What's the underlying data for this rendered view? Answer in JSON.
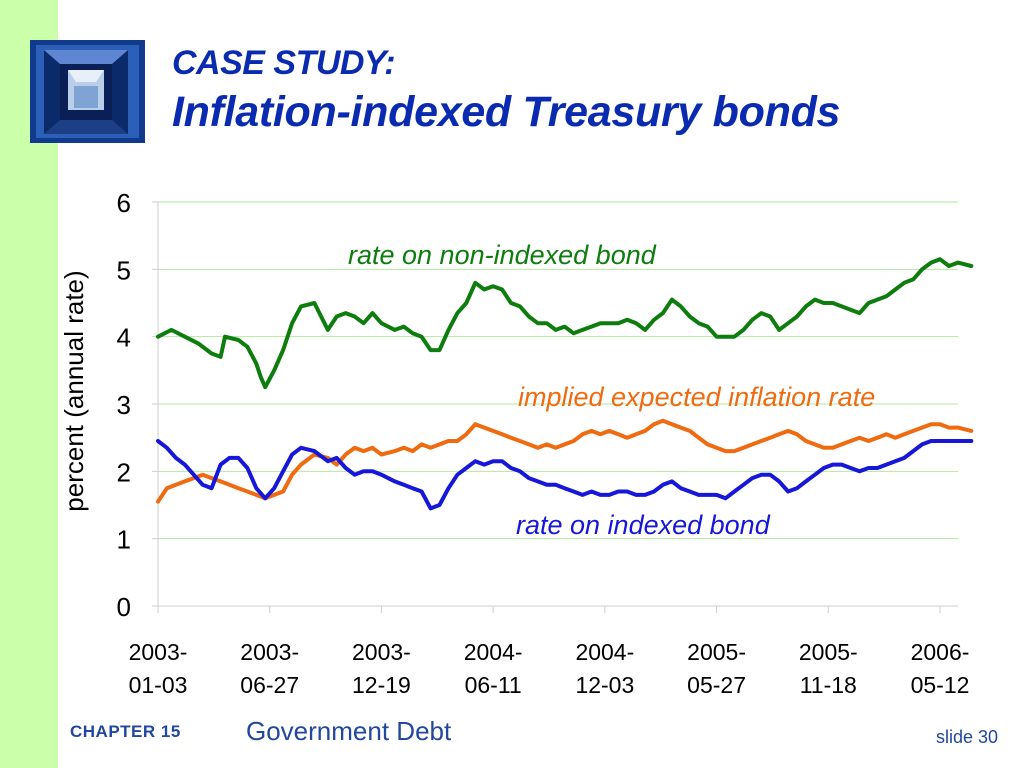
{
  "slide": {
    "title_line1": "CASE STUDY:",
    "title_line2": "Inflation-indexed Treasury bonds",
    "footer_chapter": "CHAPTER 15",
    "footer_subject": "Government Debt",
    "footer_slide": "slide 30"
  },
  "colors": {
    "sidebar": "#ccffaa",
    "title": "#0a2bb0",
    "non_indexed": "#0d7d0d",
    "inflation": "#f06a10",
    "indexed": "#1717d9",
    "grid": "#b6e6a2"
  },
  "chart_data": {
    "type": "line",
    "ylabel": "percent (annual rate)",
    "ylim": [
      0,
      6
    ],
    "yticks": [
      0,
      1,
      2,
      3,
      4,
      5,
      6
    ],
    "grid": true,
    "x_tick_labels": [
      [
        "2003-",
        "01-03"
      ],
      [
        "2003-",
        "06-27"
      ],
      [
        "2003-",
        "12-19"
      ],
      [
        "2004-",
        "06-11"
      ],
      [
        "2004-",
        "12-03"
      ],
      [
        "2005-",
        "05-27"
      ],
      [
        "2005-",
        "11-18"
      ],
      [
        "2006-",
        "05-12"
      ]
    ],
    "x_ticks": [
      "2003-01-03",
      "2003-06-27",
      "2003-12-19",
      "2004-06-11",
      "2004-12-03",
      "2005-05-27",
      "2005-11-18",
      "2006-05-12"
    ],
    "x_range": [
      "2003-01-03",
      "2006-06-30"
    ],
    "series": [
      {
        "name": "rate on non-indexed bond",
        "label_text": "rate on non-indexed bond",
        "color_key": "non_indexed",
        "points": [
          [
            "2003-01-03",
            4.0
          ],
          [
            "2003-01-24",
            4.1
          ],
          [
            "2003-02-14",
            4.0
          ],
          [
            "2003-03-07",
            3.9
          ],
          [
            "2003-03-28",
            3.75
          ],
          [
            "2003-04-11",
            3.7
          ],
          [
            "2003-04-18",
            4.0
          ],
          [
            "2003-05-09",
            3.95
          ],
          [
            "2003-05-23",
            3.85
          ],
          [
            "2003-06-06",
            3.6
          ],
          [
            "2003-06-13",
            3.4
          ],
          [
            "2003-06-20",
            3.25
          ],
          [
            "2003-07-04",
            3.5
          ],
          [
            "2003-07-18",
            3.8
          ],
          [
            "2003-08-01",
            4.2
          ],
          [
            "2003-08-15",
            4.45
          ],
          [
            "2003-09-05",
            4.5
          ],
          [
            "2003-09-26",
            4.1
          ],
          [
            "2003-10-10",
            4.3
          ],
          [
            "2003-10-24",
            4.35
          ],
          [
            "2003-11-07",
            4.3
          ],
          [
            "2003-11-21",
            4.2
          ],
          [
            "2003-12-05",
            4.35
          ],
          [
            "2003-12-19",
            4.2
          ],
          [
            "2004-01-09",
            4.1
          ],
          [
            "2004-01-23",
            4.15
          ],
          [
            "2004-02-06",
            4.05
          ],
          [
            "2004-02-20",
            4.0
          ],
          [
            "2004-03-05",
            3.8
          ],
          [
            "2004-03-19",
            3.8
          ],
          [
            "2004-04-02",
            4.1
          ],
          [
            "2004-04-16",
            4.35
          ],
          [
            "2004-04-30",
            4.5
          ],
          [
            "2004-05-14",
            4.8
          ],
          [
            "2004-05-28",
            4.7
          ],
          [
            "2004-06-11",
            4.75
          ],
          [
            "2004-06-25",
            4.7
          ],
          [
            "2004-07-09",
            4.5
          ],
          [
            "2004-07-23",
            4.45
          ],
          [
            "2004-08-06",
            4.3
          ],
          [
            "2004-08-20",
            4.2
          ],
          [
            "2004-09-03",
            4.2
          ],
          [
            "2004-09-17",
            4.1
          ],
          [
            "2004-10-01",
            4.15
          ],
          [
            "2004-10-15",
            4.05
          ],
          [
            "2004-10-29",
            4.1
          ],
          [
            "2004-11-12",
            4.15
          ],
          [
            "2004-11-26",
            4.2
          ],
          [
            "2004-12-10",
            4.2
          ],
          [
            "2004-12-24",
            4.2
          ],
          [
            "2005-01-07",
            4.25
          ],
          [
            "2005-01-21",
            4.2
          ],
          [
            "2005-02-04",
            4.1
          ],
          [
            "2005-02-18",
            4.25
          ],
          [
            "2005-03-04",
            4.35
          ],
          [
            "2005-03-18",
            4.55
          ],
          [
            "2005-04-01",
            4.45
          ],
          [
            "2005-04-15",
            4.3
          ],
          [
            "2005-04-29",
            4.2
          ],
          [
            "2005-05-13",
            4.15
          ],
          [
            "2005-05-27",
            4.0
          ],
          [
            "2005-06-10",
            4.0
          ],
          [
            "2005-06-24",
            4.0
          ],
          [
            "2005-07-08",
            4.1
          ],
          [
            "2005-07-22",
            4.25
          ],
          [
            "2005-08-05",
            4.35
          ],
          [
            "2005-08-19",
            4.3
          ],
          [
            "2005-09-02",
            4.1
          ],
          [
            "2005-09-16",
            4.2
          ],
          [
            "2005-09-30",
            4.3
          ],
          [
            "2005-10-14",
            4.45
          ],
          [
            "2005-10-28",
            4.55
          ],
          [
            "2005-11-11",
            4.5
          ],
          [
            "2005-11-25",
            4.5
          ],
          [
            "2005-12-09",
            4.45
          ],
          [
            "2005-12-23",
            4.4
          ],
          [
            "2006-01-06",
            4.35
          ],
          [
            "2006-01-20",
            4.5
          ],
          [
            "2006-02-03",
            4.55
          ],
          [
            "2006-02-17",
            4.6
          ],
          [
            "2006-03-03",
            4.7
          ],
          [
            "2006-03-17",
            4.8
          ],
          [
            "2006-03-31",
            4.85
          ],
          [
            "2006-04-14",
            5.0
          ],
          [
            "2006-04-28",
            5.1
          ],
          [
            "2006-05-12",
            5.15
          ],
          [
            "2006-05-26",
            5.05
          ],
          [
            "2006-06-09",
            5.1
          ],
          [
            "2006-06-30",
            5.05
          ]
        ]
      },
      {
        "name": "implied expected inflation rate",
        "label_text": "implied expected inflation rate",
        "color_key": "inflation",
        "points": [
          [
            "2003-01-03",
            1.55
          ],
          [
            "2003-01-17",
            1.75
          ],
          [
            "2003-01-31",
            1.8
          ],
          [
            "2003-02-14",
            1.85
          ],
          [
            "2003-02-28",
            1.9
          ],
          [
            "2003-03-14",
            1.95
          ],
          [
            "2003-03-28",
            1.9
          ],
          [
            "2003-04-11",
            1.85
          ],
          [
            "2003-04-25",
            1.8
          ],
          [
            "2003-05-09",
            1.75
          ],
          [
            "2003-05-23",
            1.7
          ],
          [
            "2003-06-06",
            1.65
          ],
          [
            "2003-06-20",
            1.6
          ],
          [
            "2003-07-04",
            1.65
          ],
          [
            "2003-07-18",
            1.7
          ],
          [
            "2003-08-01",
            1.95
          ],
          [
            "2003-08-15",
            2.1
          ],
          [
            "2003-09-05",
            2.25
          ],
          [
            "2003-09-26",
            2.2
          ],
          [
            "2003-10-10",
            2.1
          ],
          [
            "2003-10-24",
            2.25
          ],
          [
            "2003-11-07",
            2.35
          ],
          [
            "2003-11-21",
            2.3
          ],
          [
            "2003-12-05",
            2.35
          ],
          [
            "2003-12-19",
            2.25
          ],
          [
            "2004-01-09",
            2.3
          ],
          [
            "2004-01-23",
            2.35
          ],
          [
            "2004-02-06",
            2.3
          ],
          [
            "2004-02-20",
            2.4
          ],
          [
            "2004-03-05",
            2.35
          ],
          [
            "2004-03-19",
            2.4
          ],
          [
            "2004-04-02",
            2.45
          ],
          [
            "2004-04-16",
            2.45
          ],
          [
            "2004-04-30",
            2.55
          ],
          [
            "2004-05-14",
            2.7
          ],
          [
            "2004-05-28",
            2.65
          ],
          [
            "2004-06-11",
            2.6
          ],
          [
            "2004-06-25",
            2.55
          ],
          [
            "2004-07-09",
            2.5
          ],
          [
            "2004-07-23",
            2.45
          ],
          [
            "2004-08-06",
            2.4
          ],
          [
            "2004-08-20",
            2.35
          ],
          [
            "2004-09-03",
            2.4
          ],
          [
            "2004-09-17",
            2.35
          ],
          [
            "2004-10-01",
            2.4
          ],
          [
            "2004-10-15",
            2.45
          ],
          [
            "2004-10-29",
            2.55
          ],
          [
            "2004-11-12",
            2.6
          ],
          [
            "2004-11-26",
            2.55
          ],
          [
            "2004-12-10",
            2.6
          ],
          [
            "2004-12-24",
            2.55
          ],
          [
            "2005-01-07",
            2.5
          ],
          [
            "2005-01-21",
            2.55
          ],
          [
            "2005-02-04",
            2.6
          ],
          [
            "2005-02-18",
            2.7
          ],
          [
            "2005-03-04",
            2.75
          ],
          [
            "2005-03-18",
            2.7
          ],
          [
            "2005-04-01",
            2.65
          ],
          [
            "2005-04-15",
            2.6
          ],
          [
            "2005-04-29",
            2.5
          ],
          [
            "2005-05-13",
            2.4
          ],
          [
            "2005-05-27",
            2.35
          ],
          [
            "2005-06-10",
            2.3
          ],
          [
            "2005-06-24",
            2.3
          ],
          [
            "2005-07-08",
            2.35
          ],
          [
            "2005-07-22",
            2.4
          ],
          [
            "2005-08-05",
            2.45
          ],
          [
            "2005-08-19",
            2.5
          ],
          [
            "2005-09-02",
            2.55
          ],
          [
            "2005-09-16",
            2.6
          ],
          [
            "2005-09-30",
            2.55
          ],
          [
            "2005-10-14",
            2.45
          ],
          [
            "2005-10-28",
            2.4
          ],
          [
            "2005-11-11",
            2.35
          ],
          [
            "2005-11-25",
            2.35
          ],
          [
            "2005-12-09",
            2.4
          ],
          [
            "2005-12-23",
            2.45
          ],
          [
            "2006-01-06",
            2.5
          ],
          [
            "2006-01-20",
            2.45
          ],
          [
            "2006-02-03",
            2.5
          ],
          [
            "2006-02-17",
            2.55
          ],
          [
            "2006-03-03",
            2.5
          ],
          [
            "2006-03-17",
            2.55
          ],
          [
            "2006-03-31",
            2.6
          ],
          [
            "2006-04-14",
            2.65
          ],
          [
            "2006-04-28",
            2.7
          ],
          [
            "2006-05-12",
            2.7
          ],
          [
            "2006-05-26",
            2.65
          ],
          [
            "2006-06-09",
            2.65
          ],
          [
            "2006-06-30",
            2.6
          ]
        ]
      },
      {
        "name": "rate on indexed bond",
        "label_text": "rate on indexed bond",
        "color_key": "indexed",
        "points": [
          [
            "2003-01-03",
            2.45
          ],
          [
            "2003-01-17",
            2.35
          ],
          [
            "2003-01-31",
            2.2
          ],
          [
            "2003-02-14",
            2.1
          ],
          [
            "2003-02-28",
            1.95
          ],
          [
            "2003-03-14",
            1.8
          ],
          [
            "2003-03-28",
            1.75
          ],
          [
            "2003-04-11",
            2.1
          ],
          [
            "2003-04-25",
            2.2
          ],
          [
            "2003-05-09",
            2.2
          ],
          [
            "2003-05-23",
            2.05
          ],
          [
            "2003-06-06",
            1.75
          ],
          [
            "2003-06-20",
            1.6
          ],
          [
            "2003-07-04",
            1.75
          ],
          [
            "2003-07-18",
            2.0
          ],
          [
            "2003-08-01",
            2.25
          ],
          [
            "2003-08-15",
            2.35
          ],
          [
            "2003-09-05",
            2.3
          ],
          [
            "2003-09-26",
            2.15
          ],
          [
            "2003-10-10",
            2.2
          ],
          [
            "2003-10-24",
            2.05
          ],
          [
            "2003-11-07",
            1.95
          ],
          [
            "2003-11-21",
            2.0
          ],
          [
            "2003-12-05",
            2.0
          ],
          [
            "2003-12-19",
            1.95
          ],
          [
            "2004-01-09",
            1.85
          ],
          [
            "2004-01-23",
            1.8
          ],
          [
            "2004-02-06",
            1.75
          ],
          [
            "2004-02-20",
            1.7
          ],
          [
            "2004-03-05",
            1.45
          ],
          [
            "2004-03-19",
            1.5
          ],
          [
            "2004-04-02",
            1.75
          ],
          [
            "2004-04-16",
            1.95
          ],
          [
            "2004-04-30",
            2.05
          ],
          [
            "2004-05-14",
            2.15
          ],
          [
            "2004-05-28",
            2.1
          ],
          [
            "2004-06-11",
            2.15
          ],
          [
            "2004-06-25",
            2.15
          ],
          [
            "2004-07-09",
            2.05
          ],
          [
            "2004-07-23",
            2.0
          ],
          [
            "2004-08-06",
            1.9
          ],
          [
            "2004-08-20",
            1.85
          ],
          [
            "2004-09-03",
            1.8
          ],
          [
            "2004-09-17",
            1.8
          ],
          [
            "2004-10-01",
            1.75
          ],
          [
            "2004-10-15",
            1.7
          ],
          [
            "2004-10-29",
            1.65
          ],
          [
            "2004-11-12",
            1.7
          ],
          [
            "2004-11-26",
            1.65
          ],
          [
            "2004-12-10",
            1.65
          ],
          [
            "2004-12-24",
            1.7
          ],
          [
            "2005-01-07",
            1.7
          ],
          [
            "2005-01-21",
            1.65
          ],
          [
            "2005-02-04",
            1.65
          ],
          [
            "2005-02-18",
            1.7
          ],
          [
            "2005-03-04",
            1.8
          ],
          [
            "2005-03-18",
            1.85
          ],
          [
            "2005-04-01",
            1.75
          ],
          [
            "2005-04-15",
            1.7
          ],
          [
            "2005-04-29",
            1.65
          ],
          [
            "2005-05-13",
            1.65
          ],
          [
            "2005-05-27",
            1.65
          ],
          [
            "2005-06-10",
            1.6
          ],
          [
            "2005-06-24",
            1.7
          ],
          [
            "2005-07-08",
            1.8
          ],
          [
            "2005-07-22",
            1.9
          ],
          [
            "2005-08-05",
            1.95
          ],
          [
            "2005-08-19",
            1.95
          ],
          [
            "2005-09-02",
            1.85
          ],
          [
            "2005-09-16",
            1.7
          ],
          [
            "2005-09-30",
            1.75
          ],
          [
            "2005-10-14",
            1.85
          ],
          [
            "2005-10-28",
            1.95
          ],
          [
            "2005-11-11",
            2.05
          ],
          [
            "2005-11-25",
            2.1
          ],
          [
            "2005-12-09",
            2.1
          ],
          [
            "2005-12-23",
            2.05
          ],
          [
            "2006-01-06",
            2.0
          ],
          [
            "2006-01-20",
            2.05
          ],
          [
            "2006-02-03",
            2.05
          ],
          [
            "2006-02-17",
            2.1
          ],
          [
            "2006-03-03",
            2.15
          ],
          [
            "2006-03-17",
            2.2
          ],
          [
            "2006-03-31",
            2.3
          ],
          [
            "2006-04-14",
            2.4
          ],
          [
            "2006-04-28",
            2.45
          ],
          [
            "2006-05-12",
            2.45
          ],
          [
            "2006-05-26",
            2.45
          ],
          [
            "2006-06-09",
            2.45
          ],
          [
            "2006-06-30",
            2.45
          ]
        ]
      }
    ]
  }
}
